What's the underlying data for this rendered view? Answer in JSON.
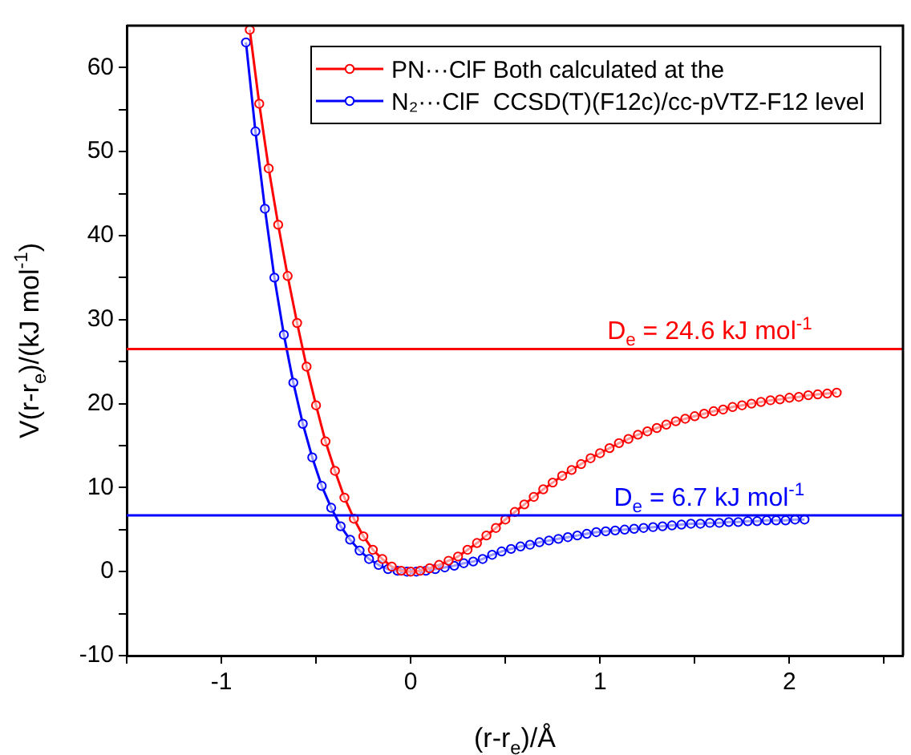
{
  "chart_data": {
    "type": "line",
    "xlabel": "(r-r$_{e}$)/Å",
    "ylabel": "V(r-r$_{e}$)/(kJ mol$^{-1}$)",
    "xlim": [
      -1.5,
      2.6
    ],
    "xticks": [
      {
        "value": -1.5,
        "label": null
      },
      -1,
      {
        "value": -0.5,
        "label": null
      },
      0,
      {
        "value": 0.5,
        "label": null
      },
      1,
      {
        "value": 1.5,
        "label": null
      },
      2,
      {
        "value": 2.5,
        "label": null
      }
    ],
    "ylim": [
      -10,
      65
    ],
    "yticks": [
      -10,
      {
        "value": -5,
        "label": null
      },
      0,
      {
        "value": 5,
        "label": null
      },
      10,
      {
        "value": 15,
        "label": null
      },
      20,
      {
        "value": 25,
        "label": null
      },
      30,
      {
        "value": 35,
        "label": null
      },
      40,
      {
        "value": 45,
        "label": null
      },
      50,
      {
        "value": 55,
        "label": null
      },
      60
    ],
    "legend": "top right",
    "marker": "circle",
    "line_style": "solid",
    "series": [
      {
        "name": "PN···ClF Both calculated at the",
        "color": "#ff0000",
        "x": [
          -0.85,
          -0.8,
          -0.75,
          -0.7,
          -0.65,
          -0.6,
          -0.55,
          -0.5,
          -0.45,
          -0.4,
          -0.35,
          -0.3,
          -0.25,
          -0.2,
          -0.15,
          -0.1,
          -0.05,
          0,
          0.05,
          0.1,
          0.15,
          0.2,
          0.25,
          0.3,
          0.35,
          0.4,
          0.45,
          0.5,
          0.55,
          0.6,
          0.65,
          0.7,
          0.75,
          0.8,
          0.85,
          0.9,
          0.95,
          1,
          1.05,
          1.1,
          1.15,
          1.2,
          1.25,
          1.3,
          1.35,
          1.4,
          1.45,
          1.5,
          1.55,
          1.6,
          1.65,
          1.7,
          1.75,
          1.8,
          1.85,
          1.9,
          1.95,
          2,
          2.05,
          2.1,
          2.15,
          2.2,
          2.25
        ],
        "values": [
          64.5,
          55.7,
          48,
          41.3,
          35.2,
          29.6,
          24.4,
          19.8,
          15.5,
          12,
          8.8,
          6.3,
          4.2,
          2.6,
          1.5,
          0.6,
          0.1,
          0,
          0.1,
          0.4,
          0.8,
          1.3,
          1.8,
          2.6,
          3.4,
          4.3,
          5.2,
          6.2,
          7.1,
          8,
          8.9,
          9.8,
          10.6,
          11.4,
          12.1,
          12.8,
          13.5,
          14.1,
          14.7,
          15.3,
          15.8,
          16.3,
          16.7,
          17.1,
          17.5,
          17.9,
          18.2,
          18.5,
          18.8,
          19.1,
          19.3,
          19.6,
          19.8,
          20,
          20.2,
          20.4,
          20.5,
          20.7,
          20.8,
          21,
          21.1,
          21.2,
          21.3
        ]
      },
      {
        "name": "N₂···ClF  CCSD(T)(F12c)/cc-pVTZ-F12 level",
        "color": "#0000ff",
        "x": [
          -0.87,
          -0.82,
          -0.77,
          -0.72,
          -0.67,
          -0.62,
          -0.57,
          -0.52,
          -0.47,
          -0.42,
          -0.37,
          -0.32,
          -0.27,
          -0.22,
          -0.17,
          -0.12,
          -0.07,
          -0.02,
          0.03,
          0.08,
          0.13,
          0.18,
          0.23,
          0.28,
          0.33,
          0.38,
          0.43,
          0.48,
          0.53,
          0.58,
          0.63,
          0.68,
          0.73,
          0.78,
          0.83,
          0.88,
          0.93,
          0.98,
          1.03,
          1.08,
          1.13,
          1.18,
          1.23,
          1.28,
          1.33,
          1.38,
          1.43,
          1.48,
          1.53,
          1.58,
          1.63,
          1.68,
          1.73,
          1.78,
          1.83,
          1.88,
          1.93,
          1.98,
          2.03,
          2.08
        ],
        "values": [
          63,
          52.4,
          43.2,
          35,
          28.2,
          22.5,
          17.6,
          13.6,
          10.2,
          7.6,
          5.4,
          3.8,
          2.5,
          1.5,
          0.8,
          0.3,
          0.1,
          0,
          0,
          0.1,
          0.3,
          0.5,
          0.7,
          1,
          1.2,
          1.5,
          2,
          2.4,
          2.7,
          3,
          3.2,
          3.5,
          3.7,
          3.9,
          4.1,
          4.3,
          4.5,
          4.7,
          4.8,
          4.9,
          5,
          5.1,
          5.2,
          5.3,
          5.4,
          5.5,
          5.6,
          5.7,
          5.7,
          5.8,
          5.8,
          5.9,
          5.9,
          6,
          6,
          6.1,
          6.1,
          6.1,
          6.2,
          6.2
        ]
      }
    ],
    "ref_lines": [
      {
        "axis": "y",
        "value": 26.5,
        "color": "#ff0000"
      },
      {
        "axis": "y",
        "value": 6.7,
        "color": "#0000ff"
      }
    ],
    "annotations": [
      {
        "text": "D$_{e}$ = 24.6 kJ mol$^{-1}$",
        "x": 2.12,
        "y": 26.5
      },
      {
        "text": "D$_{e}$ = 6.7 kJ mol$^{-1}$",
        "x": 2.08,
        "y": 6.7
      }
    ]
  }
}
